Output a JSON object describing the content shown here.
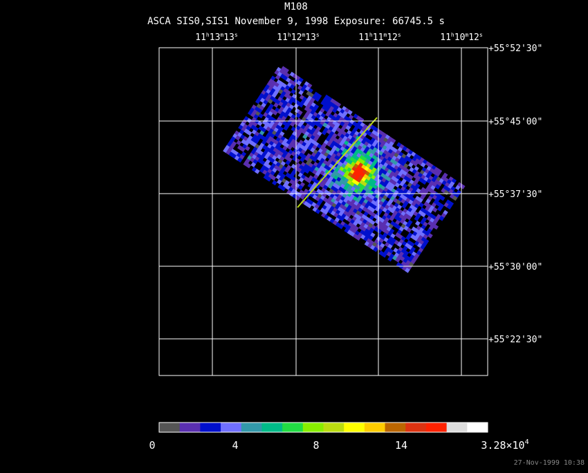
{
  "title": "M108",
  "subtitle": "ASCA SIS0,SIS1 November 9, 1998 Exposure: 66745.5 s",
  "ra_labels": [
    [
      "11",
      "h",
      "13",
      "m",
      "13",
      "s"
    ],
    [
      "11",
      "h",
      "12",
      "m",
      "13",
      "s"
    ],
    [
      "11",
      "h",
      "11",
      "m",
      "12",
      "s"
    ],
    [
      "11",
      "h",
      "10",
      "m",
      "12",
      "s"
    ]
  ],
  "dec_labels": [
    "+55°52'30\"",
    "+55°45'00\"",
    "+55°37'30\"",
    "+55°30'00\"",
    "+55°22'30\""
  ],
  "colorbar_labels": [
    [
      "0"
    ],
    [
      "4"
    ],
    [
      "8"
    ],
    [
      "14"
    ],
    [
      "3.28×10",
      "4"
    ]
  ],
  "footer": "27-Nov-1999 10:38"
}
